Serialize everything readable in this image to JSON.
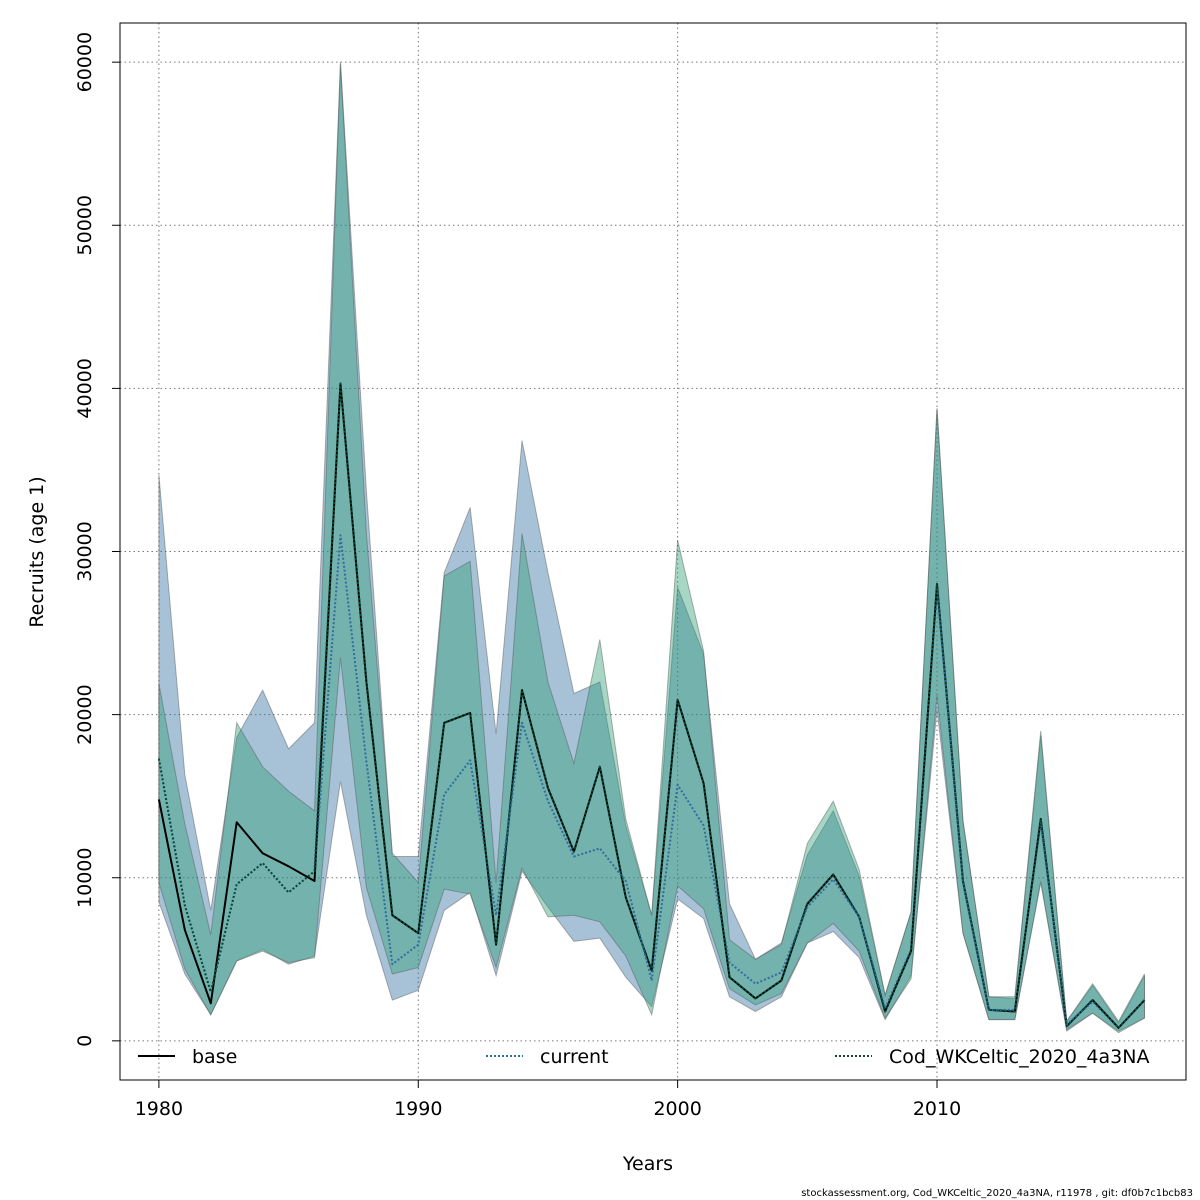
{
  "chart_data": {
    "type": "line",
    "xlabel": "Years",
    "ylabel": "Recruits (age 1)",
    "xlim": [
      1978.5,
      2019.6
    ],
    "ylim": [
      -2400,
      62400
    ],
    "x_ticks": [
      1980,
      1990,
      2000,
      2010
    ],
    "y_ticks": [
      0,
      10000,
      20000,
      30000,
      40000,
      50000,
      60000
    ],
    "grid": true,
    "legend_position": "bottom",
    "footer": "stockassessment.org, Cod_WKCeltic_2020_4a3NA, r11978 , git: df0b7c1bcb83",
    "x": [
      1980,
      1981,
      1982,
      1983,
      1984,
      1985,
      1986,
      1987,
      1988,
      1989,
      1990,
      1991,
      1992,
      1993,
      1994,
      1995,
      1996,
      1997,
      1998,
      1999,
      2000,
      2001,
      2002,
      2003,
      2004,
      2005,
      2006,
      2007,
      2008,
      2009,
      2010,
      2011,
      2012,
      2013,
      2014,
      2015,
      2016,
      2017,
      2018
    ],
    "series": [
      {
        "name": "base",
        "line_style": "solid",
        "color": "#000000",
        "band_color": "#2e6e9e",
        "values": [
          14800,
          6800,
          2300,
          13400,
          11500,
          10700,
          9800,
          40300,
          22000,
          7700,
          6600,
          19500,
          20100,
          5900,
          21500,
          15500,
          11600,
          16800,
          8800,
          4300,
          20900,
          15800,
          3900,
          2600,
          3700,
          8400,
          10200,
          7600,
          1800,
          5500,
          28000,
          9800,
          1900,
          1800,
          13600,
          900,
          2500,
          800,
          2500
        ],
        "lower": [
          8500,
          4100,
          1600,
          4900,
          5600,
          4700,
          5200,
          15900,
          7700,
          2500,
          3100,
          8000,
          9100,
          4000,
          10400,
          8200,
          6100,
          6300,
          3900,
          2100,
          8700,
          7500,
          2700,
          1800,
          2700,
          6000,
          6700,
          5100,
          1300,
          4000,
          20300,
          6600,
          1300,
          1300,
          9800,
          600,
          1700,
          600,
          1400
        ],
        "upper": [
          34700,
          16300,
          8000,
          18600,
          21500,
          17900,
          19500,
          60000,
          33700,
          11300,
          11300,
          28700,
          32700,
          18800,
          36800,
          28700,
          21300,
          22000,
          13200,
          7700,
          27800,
          23700,
          8400,
          5000,
          6000,
          11400,
          14100,
          10100,
          2800,
          7900,
          38700,
          13500,
          2700,
          2600,
          18700,
          1200,
          3400,
          1100,
          4000
        ]
      },
      {
        "name": "current",
        "line_style": "dotted",
        "color": "#2e6e9e",
        "band_color": "#2e9e74",
        "values": [
          17300,
          8300,
          3000,
          9600,
          10900,
          9100,
          10400,
          31000,
          17100,
          4700,
          5900,
          15100,
          17200,
          7700,
          19500,
          14700,
          11300,
          11800,
          9800,
          3700,
          15700,
          13200,
          4800,
          3500,
          4200,
          8200,
          9900,
          7600,
          2000,
          5600,
          27800,
          9700,
          1900,
          1900,
          13400,
          1000,
          2400,
          800,
          2500
        ],
        "lower": [
          9700,
          4400,
          1600,
          4900,
          5500,
          4800,
          5100,
          23500,
          9400,
          4100,
          4500,
          9300,
          9000,
          4500,
          10600,
          7600,
          7700,
          7300,
          5200,
          1600,
          9500,
          8100,
          3200,
          2200,
          2900,
          6000,
          7200,
          5500,
          1400,
          3800,
          21200,
          6600,
          1300,
          1300,
          9700,
          700,
          1700,
          500,
          1400
        ],
        "upper": [
          21900,
          13300,
          6500,
          19500,
          16800,
          15300,
          14100,
          59900,
          31100,
          11500,
          9700,
          28500,
          29400,
          9700,
          31100,
          22000,
          17000,
          24600,
          13600,
          7700,
          30700,
          23900,
          6200,
          5000,
          5900,
          12100,
          14700,
          10500,
          2800,
          7900,
          38800,
          13500,
          2700,
          2700,
          19000,
          1200,
          3500,
          1200,
          4100
        ]
      },
      {
        "name": "Cod_WKCeltic_2020_4a3NA",
        "line_style": "dotted",
        "color": "#0b4a37",
        "values": [
          17300,
          8300,
          3000,
          9600,
          10900,
          9100,
          10400,
          40300,
          22000,
          7700,
          6600,
          19500,
          20100,
          5900,
          21500,
          15500,
          11600,
          16800,
          8800,
          4300,
          20900,
          15800,
          3900,
          2600,
          3700,
          8400,
          10200,
          7600,
          1800,
          5500,
          28000,
          9800,
          1900,
          1800,
          13600,
          900,
          2500,
          800,
          2500
        ]
      }
    ]
  }
}
